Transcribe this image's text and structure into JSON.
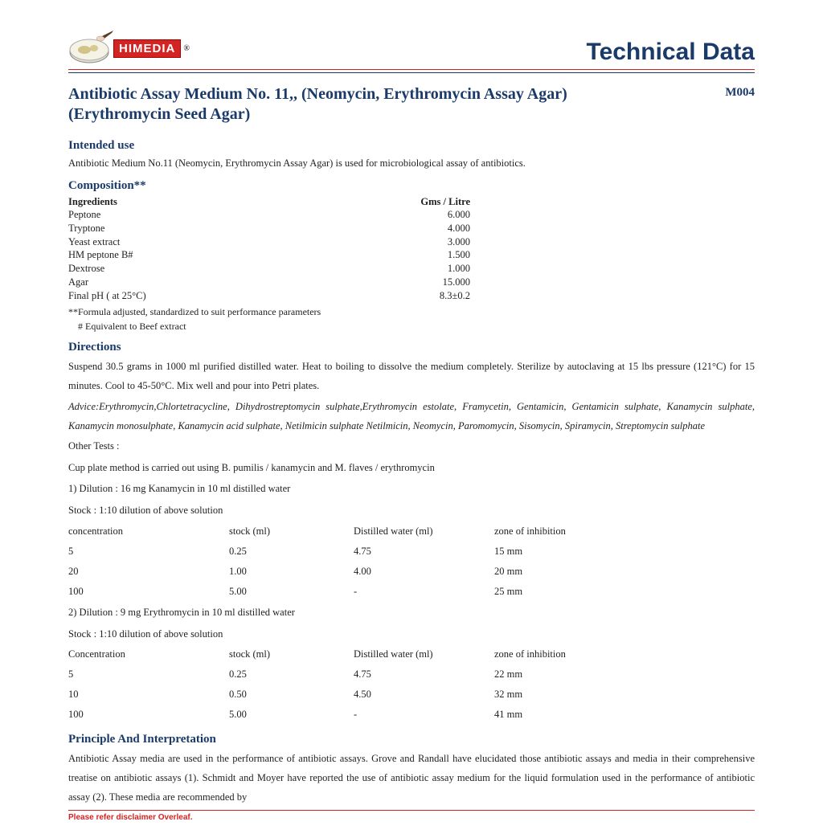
{
  "brand": {
    "name": "HIMEDIA",
    "reg": "®"
  },
  "header": {
    "title": "Technical Data"
  },
  "doc": {
    "title": "Antibiotic Assay Medium No. 11,, (Neomycin, Erythromycin Assay Agar) (Erythromycin Seed Agar)",
    "code": "M004"
  },
  "sections": {
    "intended": "Intended use",
    "intended_body": "Antibiotic Medium No.11 (Neomycin, Erythromycin Assay Agar) is used for microbiological assay of antibiotics.",
    "composition": "Composition**",
    "directions": "Directions",
    "directions_body": "Suspend 30.5 grams in 1000 ml purified distilled water. Heat to boiling to dissolve the medium completely. Sterilize by autoclaving at 15 lbs pressure (121°C) for 15 minutes. Cool to 45-50°C.  Mix well and pour into Petri plates.",
    "advice": "Advice:Erythromycin,Chlortetracycline, Dihydrostreptomycin sulphate,Erythromycin estolate, Framycetin, Gentamicin, Gentamicin sulphate, Kanamycin sulphate, Kanamycin monosulphate, Kanamycin acid sulphate, Netilmicin sulphate Netilmicin, Neomycin, Paromomycin, Sisomycin, Spiramycin, Streptomycin sulphate",
    "other_tests": "Other Tests :",
    "cup_plate": "Cup plate method is carried out using B. pumilis / kanamycin and M. flaves / erythromycin",
    "dil1": "1) Dilution : 16 mg Kanamycin in 10 ml distilled water",
    "stock1": "Stock : 1:10 dilution of above solution",
    "dil2": "2) Dilution : 9 mg Erythromycin in 10 ml distilled water",
    "stock2": "Stock : 1:10 dilution of above solution",
    "principle": "Principle And Interpretation",
    "principle_body": "Antibiotic Assay media are used in the performance of antibiotic assays. Grove and Randall have elucidated those antibiotic assays and media in their comprehensive treatise on antibiotic assays (1). Schmidt and Moyer have reported the use of antibiotic assay medium for the liquid formulation used in the performance of antibiotic assay (2). These media are recommended by"
  },
  "comp": {
    "hdr_ing": "Ingredients",
    "hdr_gms": "Gms / Litre",
    "rows": [
      {
        "name": "Peptone",
        "val": "6.000"
      },
      {
        "name": "Tryptone",
        "val": "4.000"
      },
      {
        "name": "Yeast extract",
        "val": "3.000"
      },
      {
        "name": "HM peptone B#",
        "val": "1.500"
      },
      {
        "name": "Dextrose",
        "val": "1.000"
      },
      {
        "name": "Agar",
        "val": "15.000"
      },
      {
        "name": "Final pH ( at 25°C)",
        "val": "8.3±0.2"
      }
    ],
    "note1": "**Formula adjusted, standardized to suit performance parameters",
    "note2": "# Equivalent to Beef extract"
  },
  "table1": {
    "h1": "concentration",
    "h2": "stock (ml)",
    "h3": "Distilled water (ml)",
    "h4": "zone of inhibition",
    "rows": [
      {
        "a": "5",
        "b": "0.25",
        "c": "4.75",
        "d": "15 mm"
      },
      {
        "a": "20",
        "b": "1.00",
        "c": "4.00",
        "d": "20 mm"
      },
      {
        "a": "100",
        "b": "5.00",
        "c": "-",
        "d": "25 mm"
      }
    ]
  },
  "table2": {
    "h1": "Concentration",
    "h2": "stock (ml)",
    "h3": "Distilled water (ml)",
    "h4": "zone  of inhibition",
    "rows": [
      {
        "a": "5",
        "b": "0.25",
        "c": "4.75",
        "d": "22 mm"
      },
      {
        "a": "10",
        "b": "0.50",
        "c": "4.50",
        "d": "32 mm"
      },
      {
        "a": "100",
        "b": "5.00",
        "c": "-",
        "d": "41 mm"
      }
    ]
  },
  "footer": {
    "text": "Please refer disclaimer Overleaf."
  },
  "colors": {
    "brand_blue": "#1a3a6a",
    "brand_red": "#d32323",
    "text": "#222222",
    "background": "#ffffff"
  },
  "typography": {
    "body_fontsize_pt": 9,
    "heading_fontsize_pt": 11,
    "title_fontsize_pt": 15,
    "tech_data_fontsize_pt": 22,
    "body_family": "Times New Roman",
    "heading_family": "Times New Roman",
    "tech_data_family": "Arial"
  }
}
